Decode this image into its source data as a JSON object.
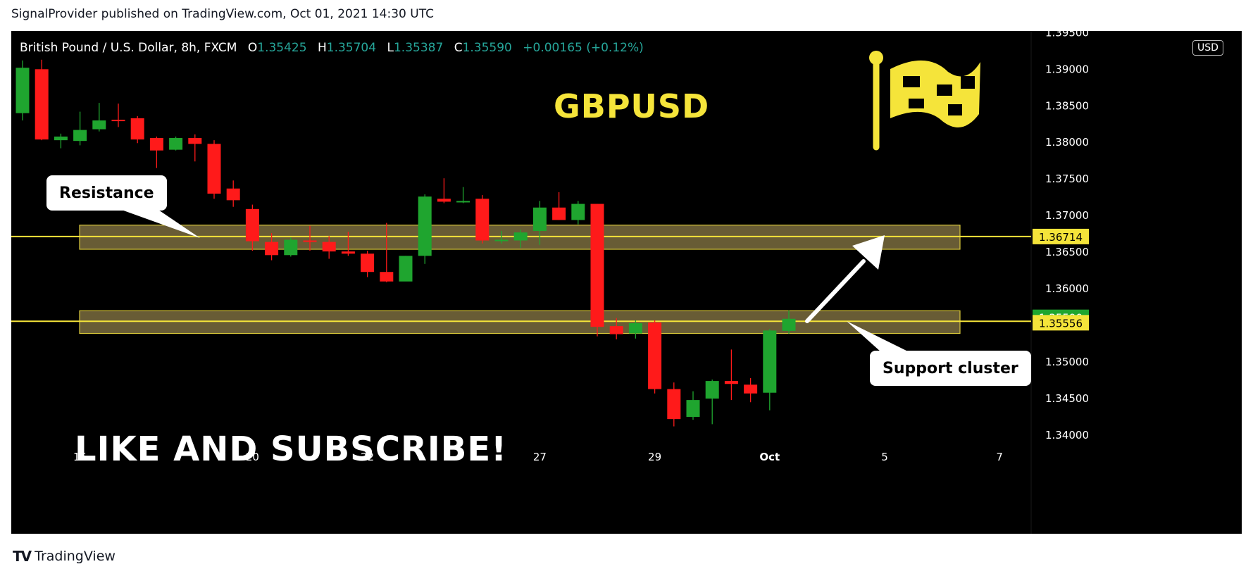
{
  "header": {
    "published_line": "SignalProvider published on TradingView.com, Oct 01, 2021 14:30 UTC"
  },
  "legend": {
    "instrument": "British Pound / U.S. Dollar, 8h, FXCM",
    "open_label": "O",
    "open_value": "1.35425",
    "high_label": "H",
    "high_value": "1.35704",
    "low_label": "L",
    "low_value": "1.35387",
    "close_label": "C",
    "close_value": "1.35590",
    "change": "+0.00165 (+0.12%)"
  },
  "symbol_title": "GBPUSD",
  "cta_text": "LIKE AND SUBSCRIBE!",
  "currency_badge": "USD",
  "callouts": {
    "resistance": "Resistance",
    "support": "Support cluster"
  },
  "footer": {
    "brand": "TradingView",
    "logo_glyph": "TV"
  },
  "colors": {
    "up": "#1fa52f",
    "down": "#ff1a1a",
    "zone_fill": "#7a6c3e",
    "level_line": "#f5e43a",
    "flag": "#f5e43a",
    "current_price_tag": "#1fa52f",
    "level_tag": "#f5e43a"
  },
  "chart_data": {
    "type": "candlestick",
    "symbol": "GBPUSD",
    "timeframe": "8h",
    "ylim": [
      1.3385,
      1.3955
    ],
    "y_ticks": [
      1.34,
      1.345,
      1.35,
      1.355,
      1.36,
      1.365,
      1.37,
      1.375,
      1.38,
      1.385,
      1.39,
      1.395
    ],
    "y_tick_labels": [
      "1.34000",
      "1.34500",
      "1.35000",
      "1.35500",
      "1.36000",
      "1.36500",
      "1.37000",
      "1.37500",
      "1.38000",
      "1.38500",
      "1.39000",
      "1.39500"
    ],
    "x_ticks": [
      {
        "index": 3,
        "label": "15"
      },
      {
        "index": 12,
        "label": "20"
      },
      {
        "index": 18,
        "label": "22"
      },
      {
        "index": 27,
        "label": "27"
      },
      {
        "index": 33,
        "label": "29"
      },
      {
        "index": 39,
        "label": "Oct"
      },
      {
        "index": 45,
        "label": "5"
      },
      {
        "index": 51,
        "label": "7"
      }
    ],
    "candles": [
      {
        "o": 1.384,
        "h": 1.3912,
        "l": 1.383,
        "c": 1.3902
      },
      {
        "o": 1.39,
        "h": 1.3913,
        "l": 1.3803,
        "c": 1.3804
      },
      {
        "o": 1.3803,
        "h": 1.3812,
        "l": 1.3792,
        "c": 1.3808
      },
      {
        "o": 1.3802,
        "h": 1.3842,
        "l": 1.3796,
        "c": 1.3817
      },
      {
        "o": 1.3818,
        "h": 1.3854,
        "l": 1.3815,
        "c": 1.383
      },
      {
        "o": 1.3831,
        "h": 1.3853,
        "l": 1.3821,
        "c": 1.3829
      },
      {
        "o": 1.3833,
        "h": 1.3836,
        "l": 1.3799,
        "c": 1.3804
      },
      {
        "o": 1.3806,
        "h": 1.3808,
        "l": 1.3765,
        "c": 1.3789
      },
      {
        "o": 1.379,
        "h": 1.3808,
        "l": 1.3789,
        "c": 1.3806
      },
      {
        "o": 1.3806,
        "h": 1.3811,
        "l": 1.3774,
        "c": 1.3798
      },
      {
        "o": 1.3798,
        "h": 1.3803,
        "l": 1.3723,
        "c": 1.373
      },
      {
        "o": 1.3737,
        "h": 1.3748,
        "l": 1.3712,
        "c": 1.3721
      },
      {
        "o": 1.3709,
        "h": 1.3715,
        "l": 1.3652,
        "c": 1.3665
      },
      {
        "o": 1.3664,
        "h": 1.3676,
        "l": 1.3639,
        "c": 1.3646
      },
      {
        "o": 1.3646,
        "h": 1.367,
        "l": 1.3644,
        "c": 1.3667
      },
      {
        "o": 1.3666,
        "h": 1.3686,
        "l": 1.3652,
        "c": 1.3664
      },
      {
        "o": 1.3664,
        "h": 1.3672,
        "l": 1.3641,
        "c": 1.3651
      },
      {
        "o": 1.3651,
        "h": 1.3678,
        "l": 1.3645,
        "c": 1.3648
      },
      {
        "o": 1.3648,
        "h": 1.3652,
        "l": 1.3616,
        "c": 1.3623
      },
      {
        "o": 1.3623,
        "h": 1.369,
        "l": 1.3609,
        "c": 1.361
      },
      {
        "o": 1.361,
        "h": 1.3645,
        "l": 1.3611,
        "c": 1.3645
      },
      {
        "o": 1.3645,
        "h": 1.3729,
        "l": 1.3634,
        "c": 1.3726
      },
      {
        "o": 1.3723,
        "h": 1.3751,
        "l": 1.3717,
        "c": 1.3719
      },
      {
        "o": 1.3718,
        "h": 1.3739,
        "l": 1.3717,
        "c": 1.372
      },
      {
        "o": 1.3723,
        "h": 1.3728,
        "l": 1.3662,
        "c": 1.3666
      },
      {
        "o": 1.3666,
        "h": 1.3679,
        "l": 1.3662,
        "c": 1.3667
      },
      {
        "o": 1.3666,
        "h": 1.3681,
        "l": 1.3656,
        "c": 1.3677
      },
      {
        "o": 1.3679,
        "h": 1.372,
        "l": 1.366,
        "c": 1.3711
      },
      {
        "o": 1.3711,
        "h": 1.3732,
        "l": 1.3694,
        "c": 1.3694
      },
      {
        "o": 1.3694,
        "h": 1.372,
        "l": 1.3688,
        "c": 1.3716
      },
      {
        "o": 1.3716,
        "h": 1.3716,
        "l": 1.3535,
        "c": 1.3548
      },
      {
        "o": 1.3549,
        "h": 1.356,
        "l": 1.3531,
        "c": 1.3538
      },
      {
        "o": 1.3539,
        "h": 1.3557,
        "l": 1.3532,
        "c": 1.3553
      },
      {
        "o": 1.3554,
        "h": 1.3557,
        "l": 1.3457,
        "c": 1.3463
      },
      {
        "o": 1.3463,
        "h": 1.3472,
        "l": 1.3412,
        "c": 1.3422
      },
      {
        "o": 1.3425,
        "h": 1.346,
        "l": 1.3421,
        "c": 1.3448
      },
      {
        "o": 1.345,
        "h": 1.3476,
        "l": 1.3415,
        "c": 1.3474
      },
      {
        "o": 1.3474,
        "h": 1.3517,
        "l": 1.3448,
        "c": 1.347
      },
      {
        "o": 1.3469,
        "h": 1.3478,
        "l": 1.3445,
        "c": 1.3457
      },
      {
        "o": 1.3458,
        "h": 1.3545,
        "l": 1.3434,
        "c": 1.3543
      },
      {
        "o": 1.35425,
        "h": 1.35704,
        "l": 1.35387,
        "c": 1.3559
      }
    ],
    "zones": [
      {
        "name": "Resistance",
        "low": 1.3654,
        "high": 1.3687
      },
      {
        "name": "Support cluster",
        "low": 1.3539,
        "high": 1.357
      }
    ],
    "levels": [
      {
        "value": 1.36714,
        "label": "1.36714",
        "color": "#f5e43a"
      },
      {
        "value": 1.35556,
        "label": "1.35556",
        "color": "#f5e43a"
      }
    ],
    "current_price": {
      "value": 1.3559,
      "label": "1.35590"
    }
  }
}
